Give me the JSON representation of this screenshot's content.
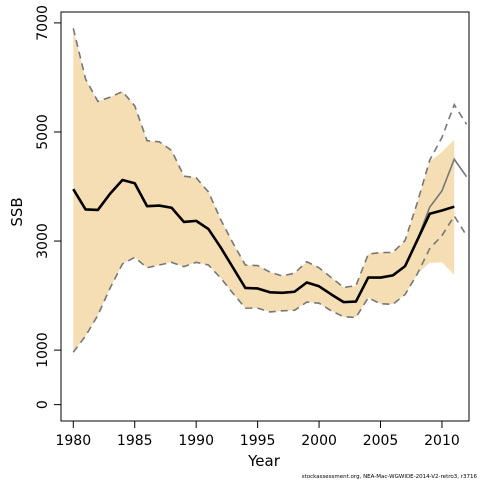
{
  "chart_data": {
    "type": "line",
    "xlabel": "Year",
    "ylabel": "SSB",
    "xlim": [
      1979,
      2012.2
    ],
    "ylim": [
      -300,
      7200
    ],
    "x_ticks": [
      1980,
      1985,
      1990,
      1995,
      2000,
      2005,
      2010
    ],
    "y_ticks": [
      0,
      1000,
      3000,
      5000,
      7000
    ],
    "grid": false,
    "legend": "none",
    "credit": "stockassessment.org, NEA-Mac-WGWIDE-2014-V2-retro3, r3716",
    "colors": {
      "band": "#F5DEB3",
      "main_line": "#000000",
      "retro_line": "#777777"
    },
    "series": [
      {
        "x": [
          1980,
          1981,
          1982,
          1983,
          1984,
          1985,
          1986,
          1987,
          1988,
          1989,
          1990,
          1991,
          1992,
          1993,
          1994,
          1995,
          1996,
          1997,
          1998,
          1999,
          2000,
          2001,
          2002,
          2003,
          2004,
          2005,
          2006,
          2007,
          2008,
          2009,
          2010,
          2011
        ],
        "y": [
          3950,
          3580,
          3570,
          3870,
          4120,
          4060,
          3640,
          3650,
          3610,
          3350,
          3370,
          3220,
          2880,
          2510,
          2140,
          2130,
          2060,
          2050,
          2070,
          2240,
          2170,
          2020,
          1880,
          1890,
          2330,
          2330,
          2370,
          2540,
          3020,
          3500,
          3560,
          3630
        ],
        "lower": [
          960,
          1260,
          1640,
          2140,
          2580,
          2700,
          2510,
          2560,
          2610,
          2530,
          2610,
          2560,
          2320,
          2040,
          1770,
          1770,
          1700,
          1720,
          1730,
          1880,
          1860,
          1720,
          1610,
          1600,
          1960,
          1850,
          1840,
          2020,
          2400,
          2600,
          2610,
          2380
        ],
        "upper": [
          6900,
          5970,
          5560,
          5640,
          5740,
          5480,
          4840,
          4820,
          4660,
          4190,
          4160,
          3900,
          3390,
          2960,
          2560,
          2550,
          2430,
          2360,
          2410,
          2620,
          2510,
          2330,
          2150,
          2180,
          2760,
          2790,
          2790,
          3010,
          3710,
          4460,
          4630,
          4860
        ]
      },
      {
        "x": [
          1980,
          1981,
          1982,
          1983,
          1984,
          1985,
          1986,
          1987,
          1988,
          1989,
          1990,
          1991,
          1992,
          1993,
          1994,
          1995,
          1996,
          1997,
          1998,
          1999,
          2000,
          2001,
          2002,
          2003,
          2004,
          2005,
          2006,
          2007,
          2008,
          2009,
          2010,
          2011,
          2012
        ],
        "y": [
          3950,
          3580,
          3570,
          3870,
          4120,
          4060,
          3640,
          3650,
          3610,
          3350,
          3370,
          3220,
          2880,
          2510,
          2140,
          2130,
          2060,
          2050,
          2070,
          2240,
          2170,
          2020,
          1880,
          1890,
          2330,
          2330,
          2370,
          2540,
          3020,
          3620,
          3920,
          4500,
          4180
        ],
        "lower": [
          960,
          1260,
          1640,
          2140,
          2580,
          2700,
          2510,
          2560,
          2610,
          2530,
          2610,
          2560,
          2320,
          2040,
          1770,
          1770,
          1700,
          1720,
          1730,
          1880,
          1860,
          1720,
          1610,
          1600,
          1960,
          1850,
          1840,
          2020,
          2400,
          2860,
          3100,
          3460,
          3100
        ],
        "upper": [
          6900,
          5970,
          5560,
          5640,
          5740,
          5480,
          4840,
          4820,
          4660,
          4190,
          4160,
          3900,
          3390,
          2960,
          2560,
          2550,
          2430,
          2360,
          2410,
          2620,
          2510,
          2330,
          2150,
          2180,
          2760,
          2790,
          2790,
          3010,
          3710,
          4480,
          4900,
          5500,
          5140
        ]
      }
    ]
  }
}
